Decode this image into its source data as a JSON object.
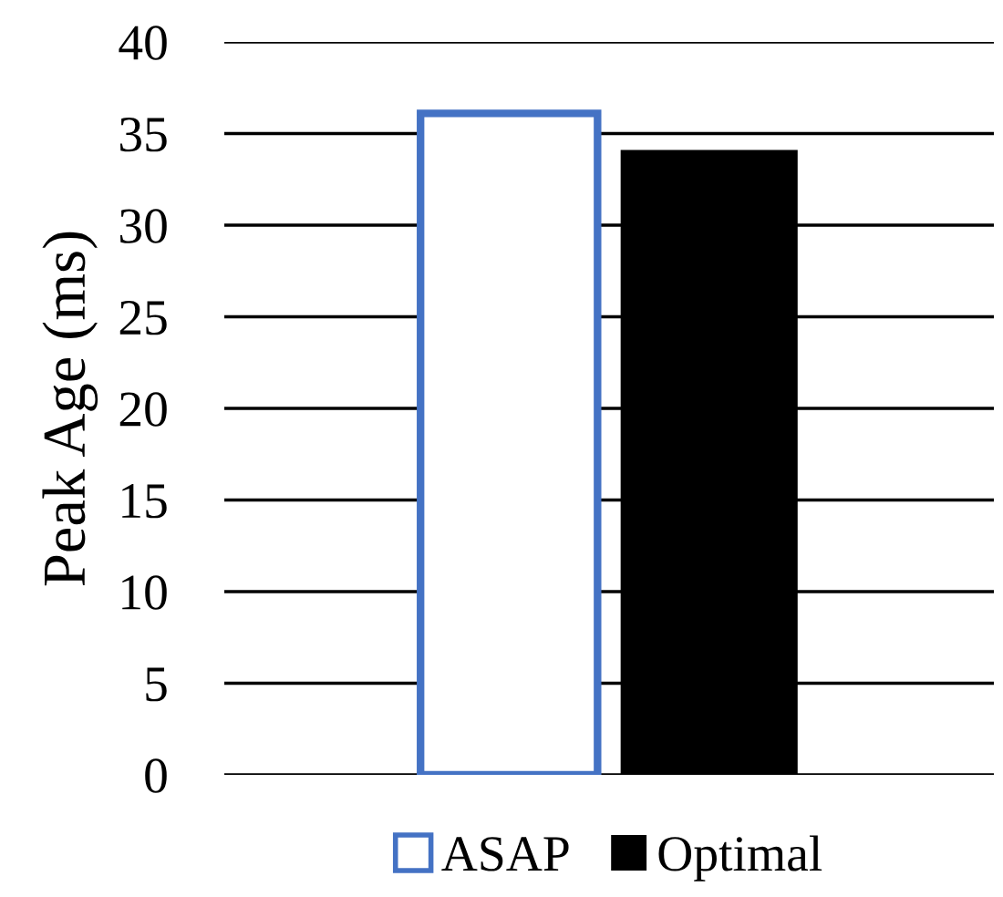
{
  "chart_data": {
    "type": "bar",
    "ylabel": "Peak Age (ms)",
    "categories": [
      null
    ],
    "series": [
      {
        "name": "ASAP",
        "color": "#4472c4",
        "values": [
          36.1
        ]
      },
      {
        "name": "Optimal",
        "color": "#000000",
        "values": [
          34.1
        ]
      }
    ],
    "ylim": [
      0,
      40
    ],
    "yticks": [
      0,
      5,
      10,
      15,
      20,
      25,
      30,
      35,
      40
    ],
    "grid": "y",
    "legend": "bottom"
  }
}
